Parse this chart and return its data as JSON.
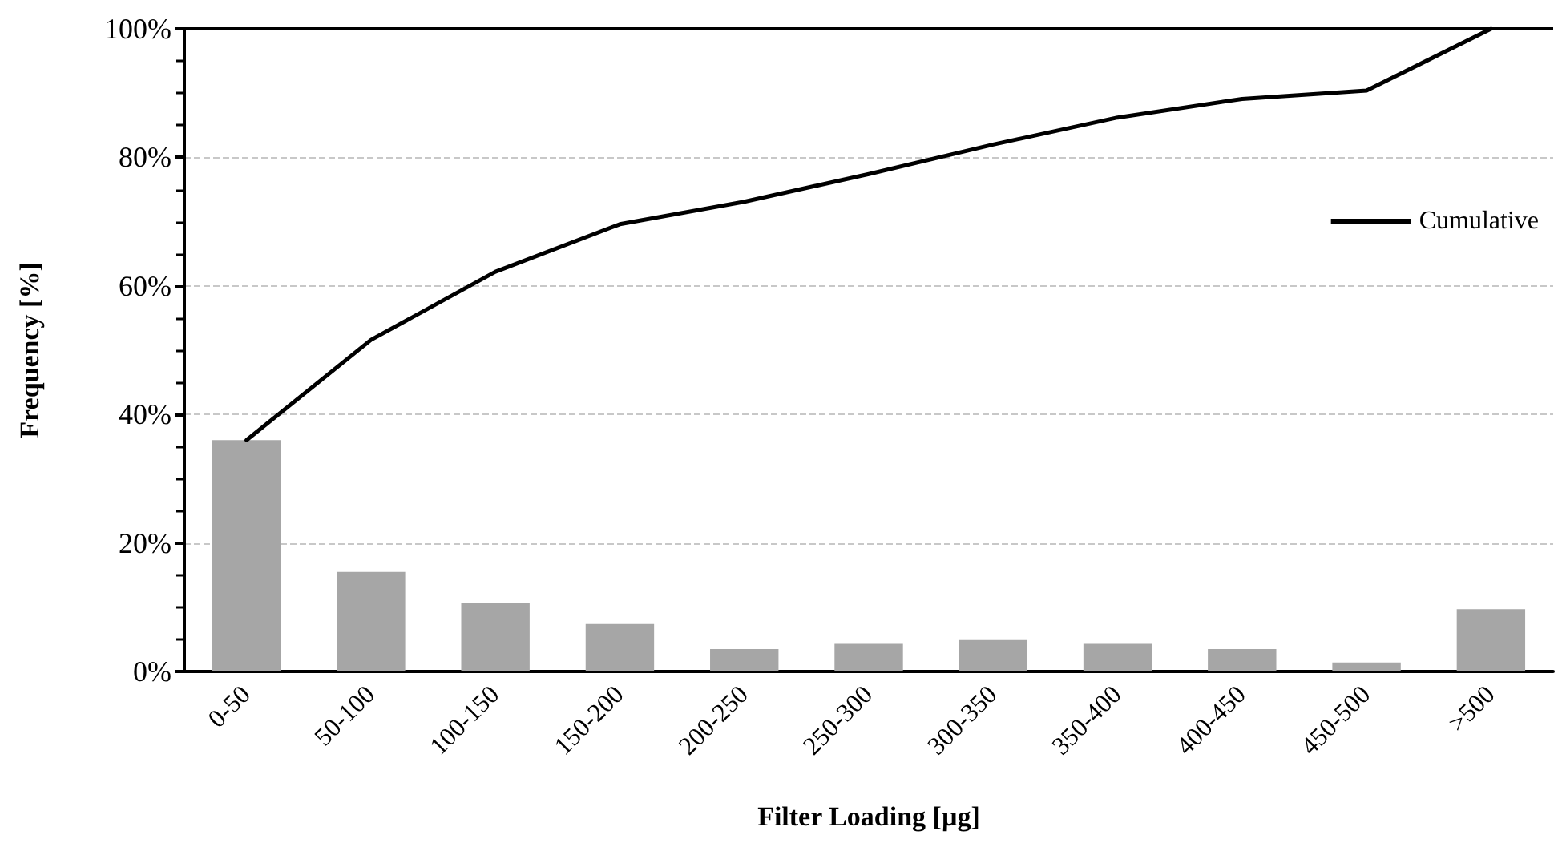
{
  "chart_data": {
    "type": "bar",
    "xlabel": "Filter Loading [µg]",
    "ylabel": "Frequency [%]",
    "categories": [
      "0-50",
      "50-100",
      "100-150",
      "150-200",
      "200-250",
      "250-300",
      "300-350",
      "350-400",
      "400-450",
      "450-500",
      ">500"
    ],
    "series": [
      {
        "color": "#a6a6a6",
        "values": [
          36,
          15.5,
          10.7,
          7.4,
          3.5,
          4.3,
          4.9,
          4.3,
          3.5,
          1.4,
          9.7
        ]
      },
      {
        "type": "line",
        "name": "Cumulative",
        "color": "#000000",
        "values": [
          36,
          51.6,
          62.2,
          69.6,
          73.1,
          77.4,
          82,
          86.2,
          89.1,
          90.4,
          100
        ]
      }
    ],
    "ylim": [
      0,
      100
    ],
    "yticks": [
      {
        "value": 0,
        "label": "0%"
      },
      {
        "value": 20,
        "label": "20%"
      },
      {
        "value": 40,
        "label": "40%"
      },
      {
        "value": 60,
        "label": "60%"
      },
      {
        "value": 80,
        "label": "80%"
      },
      {
        "value": 100,
        "label": "100%"
      }
    ],
    "grid": "y",
    "legend": "top right",
    "marker": "none",
    "line_style": "solid"
  }
}
